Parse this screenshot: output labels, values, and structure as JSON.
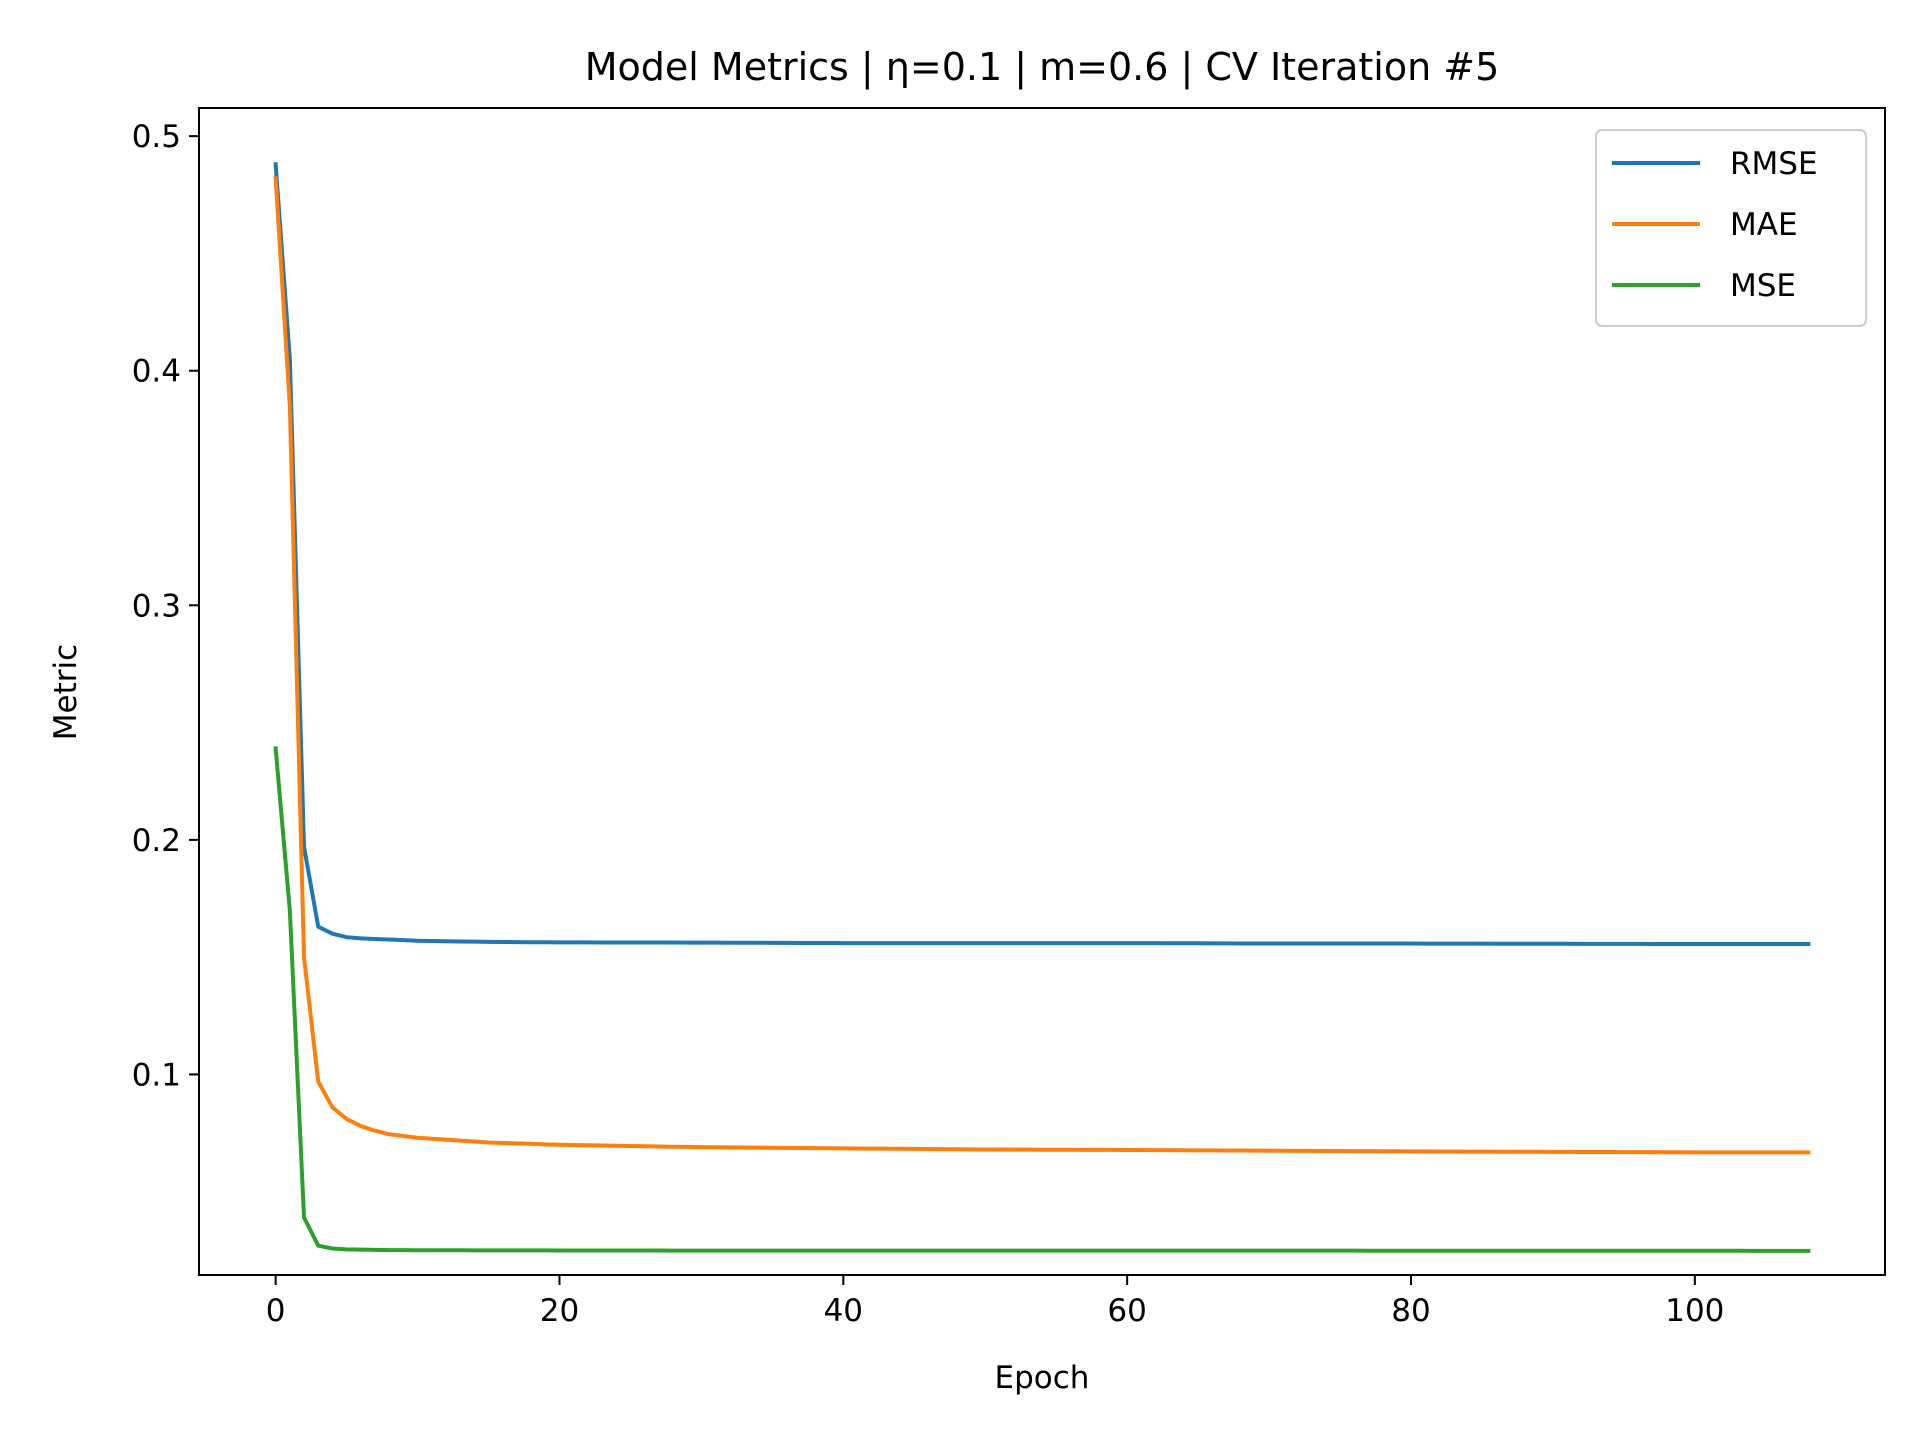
{
  "chart_data": {
    "type": "line",
    "title": "Model Metrics | η=0.1 | m=0.6 | CV Iteration #5",
    "xlabel": "Epoch",
    "ylabel": "Metric",
    "xlim": [
      -5.4,
      113.4
    ],
    "ylim": [
      0.0145,
      0.512
    ],
    "xticks": [
      0,
      20,
      40,
      60,
      80,
      100
    ],
    "yticks": [
      0.1,
      0.2,
      0.3,
      0.4,
      0.5
    ],
    "grid": false,
    "legend_position": "top-right",
    "n_epochs": 109,
    "series": [
      {
        "name": "RMSE",
        "color": "#1f77b4",
        "points": [
          [
            0,
            0.488
          ],
          [
            1,
            0.405
          ],
          [
            2,
            0.197
          ],
          [
            3,
            0.163
          ],
          [
            4,
            0.16
          ],
          [
            5,
            0.1585
          ],
          [
            6,
            0.158
          ],
          [
            8,
            0.1575
          ],
          [
            10,
            0.157
          ],
          [
            15,
            0.1565
          ],
          [
            20,
            0.1563
          ],
          [
            30,
            0.1562
          ],
          [
            40,
            0.156
          ],
          [
            50,
            0.156
          ],
          [
            60,
            0.156
          ],
          [
            70,
            0.1558
          ],
          [
            80,
            0.1558
          ],
          [
            90,
            0.1557
          ],
          [
            100,
            0.1556
          ],
          [
            108,
            0.1556
          ]
        ]
      },
      {
        "name": "MAE",
        "color": "#ff7f0e",
        "points": [
          [
            0,
            0.482
          ],
          [
            1,
            0.385
          ],
          [
            2,
            0.15
          ],
          [
            3,
            0.097
          ],
          [
            4,
            0.086
          ],
          [
            5,
            0.081
          ],
          [
            6,
            0.078
          ],
          [
            7,
            0.076
          ],
          [
            8,
            0.0745
          ],
          [
            10,
            0.073
          ],
          [
            15,
            0.071
          ],
          [
            20,
            0.07
          ],
          [
            25,
            0.0695
          ],
          [
            30,
            0.069
          ],
          [
            40,
            0.0685
          ],
          [
            50,
            0.068
          ],
          [
            60,
            0.0678
          ],
          [
            70,
            0.0675
          ],
          [
            80,
            0.0672
          ],
          [
            90,
            0.067
          ],
          [
            100,
            0.0668
          ],
          [
            108,
            0.0668
          ]
        ]
      },
      {
        "name": "MSE",
        "color": "#2ca02c",
        "points": [
          [
            0,
            0.239
          ],
          [
            1,
            0.17
          ],
          [
            2,
            0.039
          ],
          [
            3,
            0.027
          ],
          [
            4,
            0.0258
          ],
          [
            5,
            0.0254
          ],
          [
            8,
            0.0251
          ],
          [
            15,
            0.025
          ],
          [
            30,
            0.0249
          ],
          [
            60,
            0.0249
          ],
          [
            108,
            0.0248
          ]
        ]
      }
    ]
  }
}
